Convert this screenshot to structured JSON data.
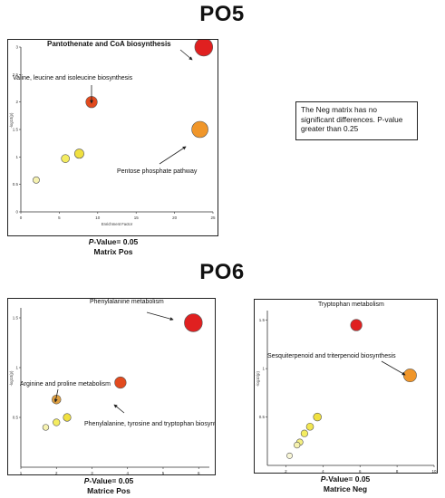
{
  "sections": [
    {
      "title": "PO5"
    },
    {
      "title": "PO6"
    }
  ],
  "note": "The Neg matrix has no significant differences. P-value greater than 0.25",
  "captions": [
    {
      "pvalue_prefix": "P",
      "pvalue_rest": "-Value= 0.05",
      "matrix": "Matrix Pos"
    },
    {
      "pvalue_prefix": "P",
      "pvalue_rest": "-Value= 0.05",
      "matrix": "Matrice Pos"
    },
    {
      "pvalue_prefix": "P",
      "pvalue_rest": "-Value= 0.05",
      "matrix": "Matrice Neg"
    }
  ],
  "chart_data": [
    {
      "type": "scatter",
      "id": "po5-pos",
      "xlabel": "Enrichment Factor",
      "ylabel": "-log10(p)",
      "xlim": [
        0,
        25
      ],
      "ylim": [
        0,
        3
      ],
      "xticks": [
        0,
        5,
        10,
        15,
        20,
        25
      ],
      "yticks": [
        0,
        0.5,
        1,
        1.5,
        2,
        2.5,
        3
      ],
      "ytick_labels": [
        "0",
        "0.5",
        "1",
        "1.5",
        "2",
        "2.5",
        "3"
      ],
      "points": [
        {
          "x": 23.8,
          "y": 3.0,
          "size": 2.2,
          "color": "#e02020"
        },
        {
          "x": 9.2,
          "y": 2.0,
          "size": 1.4,
          "color": "#e24a1e"
        },
        {
          "x": 23.3,
          "y": 1.5,
          "size": 2.0,
          "color": "#f0962a"
        },
        {
          "x": 7.6,
          "y": 1.06,
          "size": 1.15,
          "color": "#f0e040"
        },
        {
          "x": 5.8,
          "y": 0.97,
          "size": 1.0,
          "color": "#f4ec60"
        },
        {
          "x": 2.0,
          "y": 0.58,
          "size": 0.8,
          "color": "#f6f2b0"
        }
      ],
      "annotations": [
        {
          "text": "Pantothenate and CoA biosynthesis",
          "point": 0
        },
        {
          "text": "Valine, leucine and isoleucine biosynthesis",
          "point": 1
        },
        {
          "text": "Pentose phosphate pathway",
          "point": 2
        }
      ]
    },
    {
      "type": "scatter",
      "id": "po6-pos",
      "xlabel": "Enrichment Factor",
      "ylabel": "-log10(p)",
      "xlim": [
        1,
        6.3
      ],
      "ylim": [
        0,
        1.6
      ],
      "xticks": [
        1,
        2,
        3,
        4,
        5,
        6
      ],
      "yticks": [
        0.5,
        1,
        1.5
      ],
      "ytick_labels": [
        "0.5",
        "1",
        "1.5"
      ],
      "points": [
        {
          "x": 5.85,
          "y": 1.45,
          "size": 2.2,
          "color": "#e02020"
        },
        {
          "x": 3.8,
          "y": 0.85,
          "size": 1.4,
          "color": "#e24a1e"
        },
        {
          "x": 2.0,
          "y": 0.68,
          "size": 1.1,
          "color": "#e0a040"
        },
        {
          "x": 2.3,
          "y": 0.5,
          "size": 0.95,
          "color": "#f0e040"
        },
        {
          "x": 2.0,
          "y": 0.45,
          "size": 0.85,
          "color": "#f4ec60"
        },
        {
          "x": 1.7,
          "y": 0.4,
          "size": 0.75,
          "color": "#f6f2b0"
        }
      ],
      "annotations": [
        {
          "text": "Phenylalanine metabolism",
          "point": 0
        },
        {
          "text": "Arginine and proline metabolism",
          "point": 2
        },
        {
          "text": "Phenylalanine, tyrosine and tryptophan biosynthesis",
          "point": 1
        }
      ]
    },
    {
      "type": "scatter",
      "id": "po6-neg",
      "xlabel": "Enrichment Factor",
      "ylabel": "-log10(p)",
      "xlim": [
        1,
        10
      ],
      "ylim": [
        0,
        1.6
      ],
      "xticks": [
        2,
        4,
        6,
        8,
        10
      ],
      "xtick_labels": [
        "2",
        "4",
        "6",
        "8",
        "10"
      ],
      "yticks": [
        0.5,
        1,
        1.5
      ],
      "ytick_labels": [
        "0.5",
        "1",
        "1.5"
      ],
      "points": [
        {
          "x": 5.8,
          "y": 1.45,
          "size": 1.5,
          "color": "#e02020"
        },
        {
          "x": 8.7,
          "y": 0.93,
          "size": 1.7,
          "color": "#f0962a"
        },
        {
          "x": 3.7,
          "y": 0.5,
          "size": 1.05,
          "color": "#f0e040"
        },
        {
          "x": 3.3,
          "y": 0.4,
          "size": 0.95,
          "color": "#f2e650"
        },
        {
          "x": 3.0,
          "y": 0.33,
          "size": 0.9,
          "color": "#f4ec60"
        },
        {
          "x": 2.75,
          "y": 0.24,
          "size": 0.85,
          "color": "#f4ef80"
        },
        {
          "x": 2.6,
          "y": 0.21,
          "size": 0.8,
          "color": "#f6f2b0"
        },
        {
          "x": 2.2,
          "y": 0.1,
          "size": 0.75,
          "color": "#f8f6d6"
        }
      ],
      "annotations": [
        {
          "text": "Tryptophan metabolism",
          "point": 0
        },
        {
          "text": "Sesquiterpenoid and triterpenoid biosynthesis",
          "point": 1
        }
      ]
    }
  ]
}
